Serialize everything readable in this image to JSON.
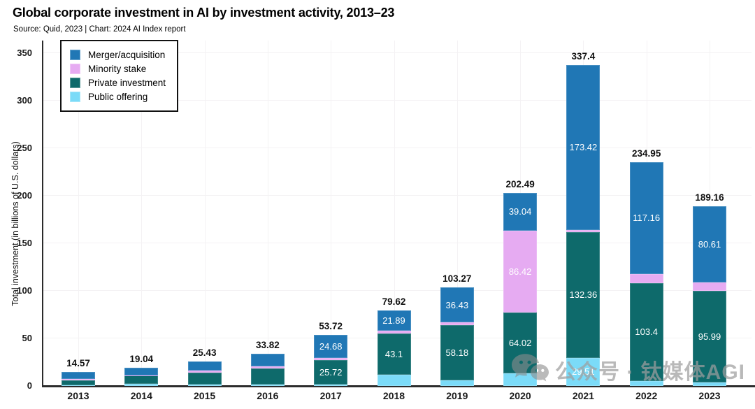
{
  "chart_data": {
    "type": "bar",
    "stacked": true,
    "title": "Global corporate investment in AI by investment activity, 2013–23",
    "source_note": "Source: Quid, 2023 | Chart: 2024 AI Index report",
    "ylabel": "Total investment (in billions of U.S. dollars)",
    "ylim": [
      0,
      363
    ],
    "yticks": [
      0,
      50,
      100,
      150,
      200,
      250,
      300,
      350
    ],
    "grid": "light horizontal gridlines every 50 and light vertical gridlines at each year",
    "legend_position": "top-left",
    "categories": [
      "2013",
      "2014",
      "2015",
      "2016",
      "2017",
      "2018",
      "2019",
      "2020",
      "2021",
      "2022",
      "2023"
    ],
    "series": [
      {
        "name": "Merger/acquisition",
        "color": "#2077b5",
        "values": [
          6.9,
          7.7,
          9.3,
          13.2,
          24.68,
          21.89,
          36.43,
          39.04,
          173.42,
          117.16,
          80.61
        ],
        "labels": [
          "",
          "",
          "",
          "",
          "24.68",
          "21.89",
          "36.43",
          "39.04",
          "173.42",
          "117.16",
          "80.61"
        ]
      },
      {
        "name": "Minority stake",
        "color": "#e6abf2",
        "values": [
          1.5,
          0.3,
          2.0,
          2.1,
          1.52,
          2.93,
          2.96,
          86.42,
          2.11,
          9.47,
          8.7
        ],
        "labels": [
          "",
          "",
          "",
          "",
          "",
          "",
          "",
          "86.42",
          "",
          "",
          ""
        ]
      },
      {
        "name": "Private investment",
        "color": "#0e6a6b",
        "values": [
          5.2,
          8.8,
          13.0,
          16.7,
          25.72,
          43.1,
          58.18,
          64.02,
          132.36,
          103.4,
          95.99
        ],
        "labels": [
          "",
          "",
          "",
          "",
          "25.72",
          "43.1",
          "58.18",
          "64.02",
          "132.36",
          "103.4",
          "95.99"
        ]
      },
      {
        "name": "Public offering",
        "color": "#7bdbf8",
        "values": [
          0.97,
          2.24,
          1.13,
          1.82,
          1.8,
          11.7,
          5.7,
          13.01,
          29.51,
          4.92,
          3.86
        ],
        "labels": [
          "",
          "",
          "",
          "",
          "",
          "",
          "",
          "",
          "29.51",
          "",
          ""
        ]
      }
    ],
    "stack_order_bottom_to_top": [
      "Public offering",
      "Private investment",
      "Minority stake",
      "Merger/acquisition"
    ],
    "totals": [
      "14.57",
      "19.04",
      "25.43",
      "33.82",
      "53.72",
      "79.62",
      "103.27",
      "202.49",
      "337.4",
      "234.95",
      "189.16"
    ]
  },
  "watermark": {
    "icon": "wechat-icon",
    "text": "公众号 · 钛媒体AGI"
  },
  "colors": {
    "merger_acquisition": "#2077b5",
    "minority_stake": "#e6abf2",
    "private_investment": "#0e6a6b",
    "public_offering": "#7bdbf8",
    "gridline": "#f4f2f4",
    "axis": "#2b2b2b",
    "label_text": "#111111",
    "segment_label_text": "#ffffff",
    "watermark_gray": "#9e9e9e"
  }
}
